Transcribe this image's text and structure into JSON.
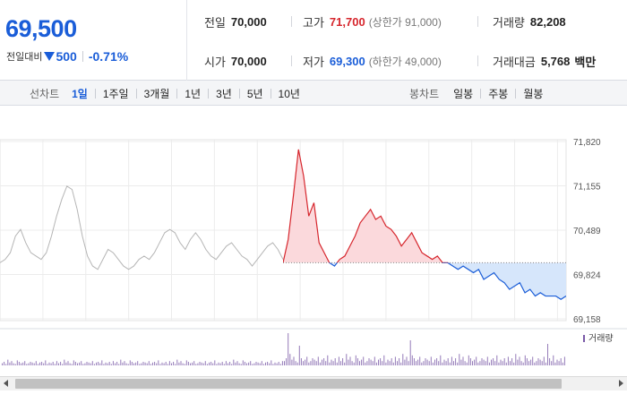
{
  "summary": {
    "price": "69,500",
    "change_label": "전일대비",
    "change_value": "500",
    "change_rate": "-0.71%",
    "stats": {
      "prev_close_label": "전일",
      "prev_close_value": "70,000",
      "high_label": "고가",
      "high_value": "71,700",
      "upper_limit": "(상한가 91,000)",
      "volume_label": "거래량",
      "volume_value": "82,208",
      "open_label": "시가",
      "open_value": "70,000",
      "low_label": "저가",
      "low_value": "69,300",
      "lower_limit": "(하한가 49,000)",
      "amount_label": "거래대금",
      "amount_value": "5,768",
      "amount_unit": "백만"
    }
  },
  "tabs": {
    "line_title": "선차트",
    "line_tabs": [
      "1일",
      "1주일",
      "3개월",
      "1년",
      "3년",
      "5년",
      "10년"
    ],
    "line_active": 0,
    "candle_title": "봉차트",
    "candle_tabs": [
      "일봉",
      "주봉",
      "월봉"
    ]
  },
  "colors": {
    "up": "#d6262d",
    "down": "#1a5dd8",
    "prev": "#b5b5b5",
    "up_fill": "#fbd9dc",
    "down_fill": "#d6e6fb",
    "volume": "#7a5aa8"
  },
  "chart_data": {
    "type": "line",
    "reference_price": 70000,
    "y_ticks": [
      "71,820",
      "71,155",
      "70,489",
      "69,824",
      "69,158"
    ],
    "ylim": [
      69158,
      71820
    ],
    "volume_legend": "거래량",
    "previous_day": [
      70000,
      70050,
      70150,
      70400,
      70500,
      70300,
      70150,
      70100,
      70050,
      70150,
      70400,
      70700,
      70950,
      71150,
      71100,
      70800,
      70400,
      70100,
      69950,
      69900,
      70050,
      70200,
      70150,
      70050,
      69950,
      69900,
      69950,
      70050,
      70100,
      70050,
      70150,
      70300,
      70450,
      70500,
      70450,
      70300,
      70200,
      70350,
      70450,
      70350,
      70200,
      70100,
      70050,
      70150,
      70250,
      70300,
      70200,
      70100,
      70050,
      69950,
      70050,
      70150,
      70250,
      70300,
      70200,
      70050
    ],
    "today": [
      70000,
      70350,
      71000,
      71700,
      71300,
      70700,
      70900,
      70300,
      70150,
      70000,
      69950,
      70050,
      70100,
      70250,
      70400,
      70600,
      70700,
      70800,
      70650,
      70700,
      70550,
      70500,
      70400,
      70250,
      70350,
      70450,
      70300,
      70150,
      70100,
      70050,
      70100,
      70000,
      70000,
      69950,
      69900,
      69950,
      69900,
      69850,
      69900,
      69750,
      69800,
      69850,
      69750,
      69700,
      69600,
      69650,
      69700,
      69550,
      69600,
      69500,
      69550,
      69500,
      69500,
      69500,
      69450,
      69500
    ]
  }
}
